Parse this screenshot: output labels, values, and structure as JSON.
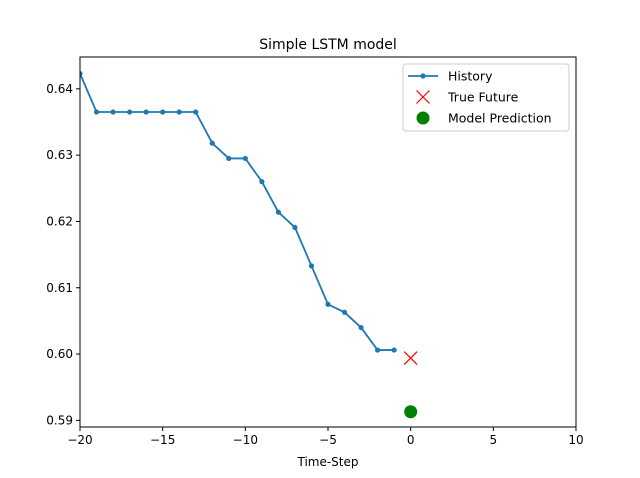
{
  "chart_data": {
    "type": "line",
    "title": "Simple LSTM model",
    "xlabel": "Time-Step",
    "ylabel": "",
    "xlim": [
      -20,
      10
    ],
    "ylim": [
      0.589,
      0.6448
    ],
    "x_ticks": [
      {
        "value": -20,
        "label": "−20"
      },
      {
        "value": -15,
        "label": "−15"
      },
      {
        "value": -10,
        "label": "−10"
      },
      {
        "value": -5,
        "label": "−5"
      },
      {
        "value": 0,
        "label": "0"
      },
      {
        "value": 5,
        "label": "5"
      },
      {
        "value": 10,
        "label": "10"
      }
    ],
    "y_ticks": [
      {
        "value": 0.59,
        "label": "0.59"
      },
      {
        "value": 0.6,
        "label": "0.60"
      },
      {
        "value": 0.61,
        "label": "0.61"
      },
      {
        "value": 0.62,
        "label": "0.62"
      },
      {
        "value": 0.63,
        "label": "0.63"
      },
      {
        "value": 0.64,
        "label": "0.64"
      }
    ],
    "grid": false,
    "legend_position": "top-right",
    "series": [
      {
        "name": "History",
        "kind": "line-with-dots",
        "color": "#1f77b4",
        "x": [
          -20,
          -19,
          -18,
          -17,
          -16,
          -15,
          -14,
          -13,
          -12,
          -11,
          -10,
          -9,
          -8,
          -7,
          -6,
          -5,
          -4,
          -3,
          -2,
          -1
        ],
        "y": [
          0.6423,
          0.6365,
          0.6365,
          0.6365,
          0.6365,
          0.6365,
          0.6365,
          0.6365,
          0.6318,
          0.6295,
          0.6295,
          0.626,
          0.6214,
          0.6191,
          0.6133,
          0.6075,
          0.6063,
          0.604,
          0.6006,
          0.6006
        ]
      },
      {
        "name": "True Future",
        "kind": "x-marker",
        "color": "#ff0000",
        "x": [
          0
        ],
        "y": [
          0.5994
        ]
      },
      {
        "name": "Model Prediction",
        "kind": "circle-marker",
        "color": "#008000",
        "x": [
          0
        ],
        "y": [
          0.5913
        ]
      }
    ]
  }
}
